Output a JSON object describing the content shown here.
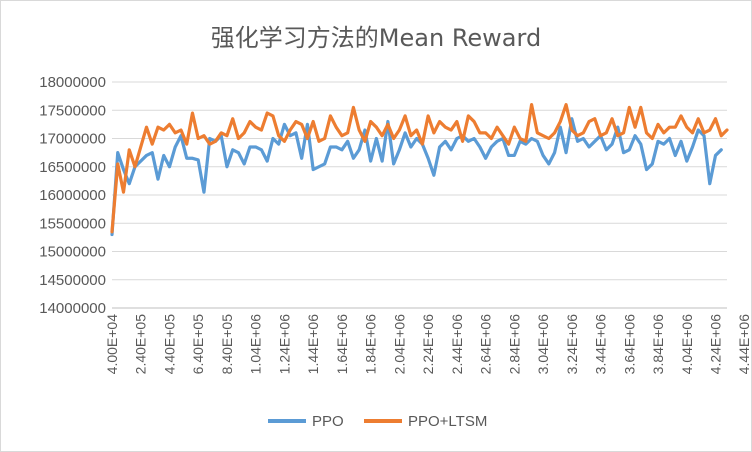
{
  "chart_data": {
    "type": "line",
    "title": "强化学习方法的Mean Reward",
    "xlabel": "",
    "ylabel": "",
    "ylim": [
      14000000,
      18000000
    ],
    "y_ticks": [
      "14000000",
      "14500000",
      "15000000",
      "15500000",
      "16000000",
      "16500000",
      "17000000",
      "17500000",
      "18000000"
    ],
    "x_tick_labels": [
      "4.00E+04",
      "2.40E+05",
      "4.40E+05",
      "6.40E+05",
      "8.40E+05",
      "1.04E+06",
      "1.24E+06",
      "1.44E+06",
      "1.64E+06",
      "1.84E+06",
      "2.04E+06",
      "2.24E+06",
      "2.44E+06",
      "2.64E+06",
      "2.84E+06",
      "3.04E+06",
      "3.24E+06",
      "3.44E+06",
      "3.64E+06",
      "3.84E+06",
      "4.04E+06",
      "4.24E+06",
      "4.44E+06"
    ],
    "x_tick_step": 200000,
    "x_start": 40000,
    "x_step": 40000,
    "grid": true,
    "legend_position": "bottom",
    "series": [
      {
        "name": "PPO",
        "color": "#5b9bd5",
        "values": [
          15300000,
          16750000,
          16450000,
          16200000,
          16500000,
          16600000,
          16700000,
          16750000,
          16280000,
          16700000,
          16500000,
          16850000,
          17050000,
          16650000,
          16650000,
          16620000,
          16050000,
          17000000,
          16950000,
          17050000,
          16500000,
          16800000,
          16750000,
          16550000,
          16850000,
          16850000,
          16800000,
          16600000,
          17000000,
          16900000,
          17250000,
          17050000,
          17100000,
          16650000,
          17250000,
          16450000,
          16500000,
          16550000,
          16850000,
          16850000,
          16800000,
          16950000,
          16650000,
          16800000,
          17150000,
          16600000,
          17000000,
          16600000,
          17300000,
          16550000,
          16800000,
          17100000,
          16850000,
          17000000,
          16900000,
          16650000,
          16350000,
          16850000,
          16950000,
          16800000,
          17000000,
          17050000,
          16950000,
          17000000,
          16850000,
          16650000,
          16850000,
          16950000,
          17000000,
          16700000,
          16700000,
          16950000,
          16900000,
          17000000,
          16950000,
          16700000,
          16550000,
          16750000,
          17200000,
          16750000,
          17350000,
          16950000,
          17000000,
          16850000,
          16950000,
          17050000,
          16800000,
          16900000,
          17200000,
          16750000,
          16800000,
          17050000,
          16900000,
          16450000,
          16550000,
          16950000,
          16900000,
          17000000,
          16700000,
          16950000,
          16600000,
          16850000,
          17150000,
          17050000,
          16200000,
          16700000,
          16800000
        ]
      },
      {
        "name": "PPO+LTSM",
        "color": "#ed7d31",
        "values": [
          15350000,
          16550000,
          16050000,
          16800000,
          16500000,
          16850000,
          17200000,
          16900000,
          17200000,
          17150000,
          17250000,
          17100000,
          17150000,
          16900000,
          17450000,
          17000000,
          17050000,
          16900000,
          16950000,
          17100000,
          17050000,
          17350000,
          17000000,
          17100000,
          17300000,
          17200000,
          17150000,
          17450000,
          17400000,
          17050000,
          16950000,
          17150000,
          17300000,
          17250000,
          17000000,
          17300000,
          16950000,
          17000000,
          17400000,
          17200000,
          17050000,
          17100000,
          17550000,
          17150000,
          16950000,
          17300000,
          17200000,
          17050000,
          17250000,
          17000000,
          17150000,
          17400000,
          17050000,
          17150000,
          16900000,
          17400000,
          17100000,
          17300000,
          17200000,
          17150000,
          17300000,
          16950000,
          17400000,
          17300000,
          17100000,
          17100000,
          17000000,
          17200000,
          17050000,
          16900000,
          17200000,
          17000000,
          16950000,
          17600000,
          17100000,
          17050000,
          17000000,
          17100000,
          17300000,
          17600000,
          17150000,
          17050000,
          17100000,
          17300000,
          17350000,
          17050000,
          17100000,
          17350000,
          17050000,
          17100000,
          17550000,
          17200000,
          17550000,
          17100000,
          17000000,
          17250000,
          17100000,
          17200000,
          17200000,
          17400000,
          17200000,
          17100000,
          17350000,
          17100000,
          17150000,
          17350000,
          17050000,
          17150000
        ]
      }
    ]
  }
}
